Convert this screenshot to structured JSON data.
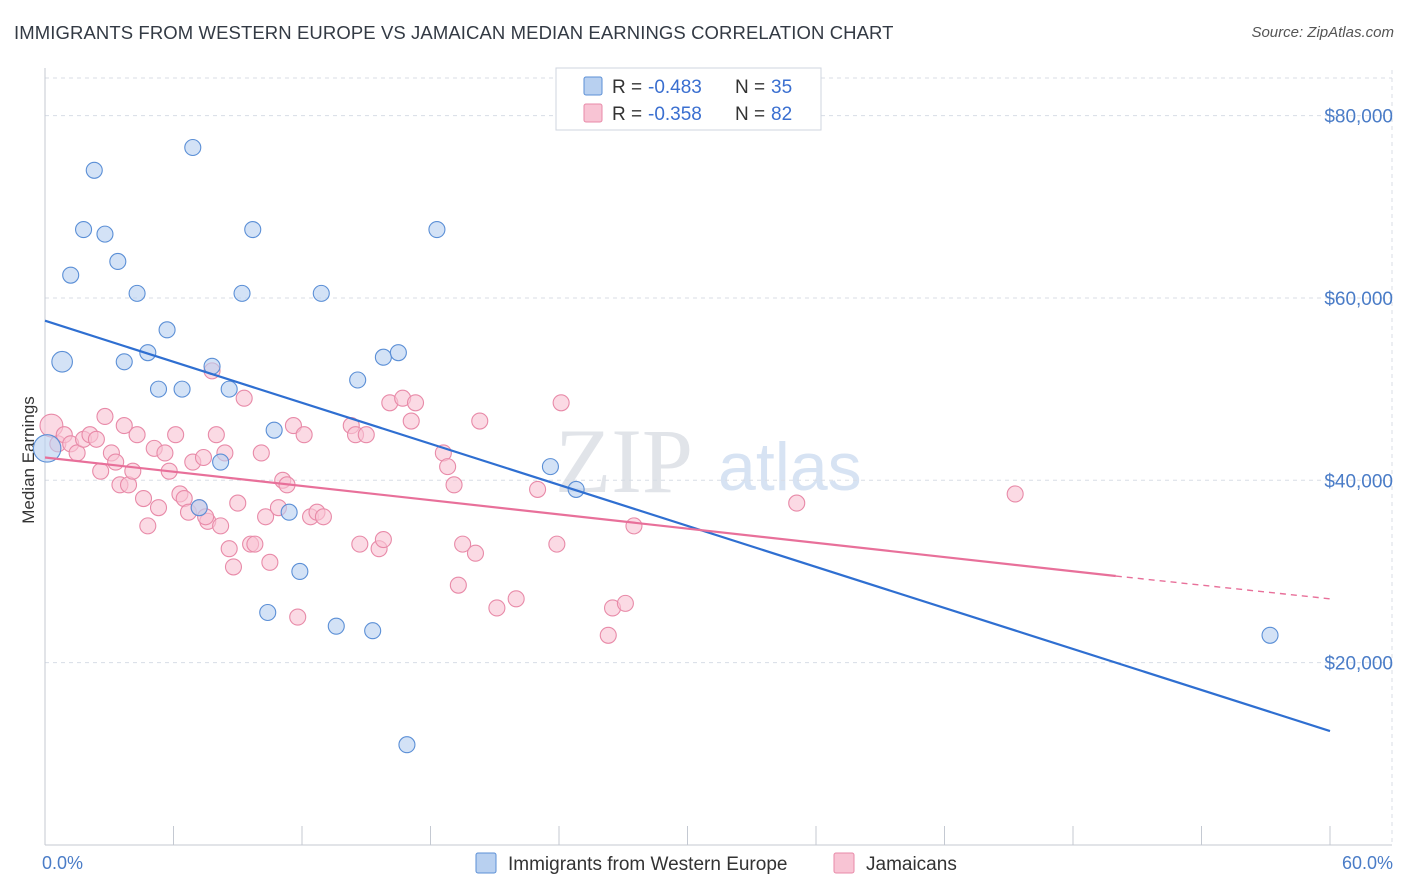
{
  "title": "IMMIGRANTS FROM WESTERN EUROPE VS JAMAICAN MEDIAN EARNINGS CORRELATION CHART",
  "source": "Source: ZipAtlas.com",
  "watermark": {
    "zip": "ZIP",
    "atlas": "atlas"
  },
  "colors": {
    "blue_fill": "#b8d0f0",
    "blue_stroke": "#5b8fd6",
    "blue_line": "#2f6fd1",
    "pink_fill": "#f8c4d4",
    "pink_stroke": "#e88aa8",
    "pink_line": "#e8709a",
    "accent_text": "#4a7cc7",
    "grid": "#d8dde6"
  },
  "legend_top": [
    {
      "r_label": "R = ",
      "r_value": "-0.483",
      "n_label": "N = ",
      "n_value": "35"
    },
    {
      "r_label": "R = ",
      "r_value": "-0.358",
      "n_label": "N = ",
      "n_value": "82"
    }
  ],
  "chart_data": {
    "type": "scatter",
    "title": "IMMIGRANTS FROM WESTERN EUROPE VS JAMAICAN MEDIAN EARNINGS CORRELATION CHART",
    "xlabel": "",
    "ylabel": "Median Earnings",
    "xlim": [
      0,
      60
    ],
    "ylim": [
      0,
      85000
    ],
    "x_ticks": [
      {
        "value": 0,
        "label": "0.0%"
      },
      {
        "value": 60,
        "label": "60.0%"
      }
    ],
    "y_ticks": [
      {
        "value": 20000,
        "label": "$20,000"
      },
      {
        "value": 40000,
        "label": "$40,000"
      },
      {
        "value": 60000,
        "label": "$60,000"
      },
      {
        "value": 80000,
        "label": "$80,000"
      }
    ],
    "grid": true,
    "series": [
      {
        "name": "Immigrants from Western Europe",
        "r": -0.483,
        "n": 35,
        "trend": {
          "x0": 0,
          "y0": 57500,
          "x1": 60,
          "y1": 12500
        },
        "points": [
          [
            0.1,
            43500
          ],
          [
            0.8,
            53000
          ],
          [
            1.2,
            62500
          ],
          [
            1.8,
            67500
          ],
          [
            2.3,
            74000
          ],
          [
            2.8,
            67000
          ],
          [
            3.4,
            64000
          ],
          [
            3.7,
            53000
          ],
          [
            4.3,
            60500
          ],
          [
            4.8,
            54000
          ],
          [
            5.3,
            50000
          ],
          [
            5.7,
            56500
          ],
          [
            6.4,
            50000
          ],
          [
            6.9,
            76500
          ],
          [
            7.2,
            37000
          ],
          [
            7.8,
            52500
          ],
          [
            8.2,
            42000
          ],
          [
            8.6,
            50000
          ],
          [
            9.2,
            60500
          ],
          [
            9.7,
            67500
          ],
          [
            10.4,
            25500
          ],
          [
            10.7,
            45500
          ],
          [
            11.4,
            36500
          ],
          [
            11.9,
            30000
          ],
          [
            12.9,
            60500
          ],
          [
            13.6,
            24000
          ],
          [
            14.6,
            51000
          ],
          [
            15.3,
            23500
          ],
          [
            15.8,
            53500
          ],
          [
            16.5,
            54000
          ],
          [
            16.9,
            11000
          ],
          [
            18.3,
            67500
          ],
          [
            23.6,
            41500
          ],
          [
            24.8,
            39000
          ],
          [
            57.2,
            23000
          ]
        ],
        "sizes": [
          24,
          18,
          14,
          14,
          14,
          14,
          14,
          14,
          14,
          14,
          14,
          14,
          14,
          14,
          14,
          14,
          14,
          14,
          14,
          14,
          14,
          14,
          14,
          14,
          14,
          14,
          14,
          14,
          14,
          14,
          14,
          14,
          14,
          14,
          14
        ]
      },
      {
        "name": "Jamaicans",
        "r": -0.358,
        "n": 82,
        "trend": {
          "x0": 0,
          "y0": 42500,
          "x1": 50,
          "y1": 29500,
          "dash_to_x": 60,
          "dash_to_y": 27000
        },
        "points": [
          [
            0.3,
            46000
          ],
          [
            0.6,
            44000
          ],
          [
            0.9,
            45000
          ],
          [
            1.2,
            44000
          ],
          [
            1.5,
            43000
          ],
          [
            1.8,
            44500
          ],
          [
            2.1,
            45000
          ],
          [
            2.4,
            44500
          ],
          [
            2.6,
            41000
          ],
          [
            2.8,
            47000
          ],
          [
            3.1,
            43000
          ],
          [
            3.3,
            42000
          ],
          [
            3.5,
            39500
          ],
          [
            3.7,
            46000
          ],
          [
            3.9,
            39500
          ],
          [
            4.1,
            41000
          ],
          [
            4.3,
            45000
          ],
          [
            4.6,
            38000
          ],
          [
            4.8,
            35000
          ],
          [
            5.1,
            43500
          ],
          [
            5.3,
            37000
          ],
          [
            5.6,
            43000
          ],
          [
            5.8,
            41000
          ],
          [
            6.1,
            45000
          ],
          [
            6.3,
            38500
          ],
          [
            6.5,
            38000
          ],
          [
            6.7,
            36500
          ],
          [
            6.9,
            42000
          ],
          [
            7.2,
            37000
          ],
          [
            7.4,
            42500
          ],
          [
            7.6,
            35500
          ],
          [
            7.8,
            52000
          ],
          [
            8.0,
            45000
          ],
          [
            8.2,
            35000
          ],
          [
            8.4,
            43000
          ],
          [
            8.6,
            32500
          ],
          [
            8.8,
            30500
          ],
          [
            9.0,
            37500
          ],
          [
            9.3,
            49000
          ],
          [
            9.6,
            33000
          ],
          [
            9.8,
            33000
          ],
          [
            10.1,
            43000
          ],
          [
            10.3,
            36000
          ],
          [
            10.5,
            31000
          ],
          [
            10.9,
            37000
          ],
          [
            11.1,
            40000
          ],
          [
            11.3,
            39500
          ],
          [
            11.6,
            46000
          ],
          [
            11.8,
            25000
          ],
          [
            12.1,
            45000
          ],
          [
            12.4,
            36000
          ],
          [
            12.7,
            36500
          ],
          [
            13.0,
            36000
          ],
          [
            14.3,
            46000
          ],
          [
            14.5,
            45000
          ],
          [
            14.7,
            33000
          ],
          [
            15.0,
            45000
          ],
          [
            15.6,
            32500
          ],
          [
            15.8,
            33500
          ],
          [
            16.1,
            48500
          ],
          [
            16.7,
            49000
          ],
          [
            17.1,
            46500
          ],
          [
            17.3,
            48500
          ],
          [
            18.6,
            43000
          ],
          [
            18.8,
            41500
          ],
          [
            19.1,
            39500
          ],
          [
            19.3,
            28500
          ],
          [
            19.5,
            33000
          ],
          [
            20.1,
            32000
          ],
          [
            20.3,
            46500
          ],
          [
            21.1,
            26000
          ],
          [
            23.0,
            39000
          ],
          [
            23.9,
            33000
          ],
          [
            24.1,
            48500
          ],
          [
            26.3,
            23000
          ],
          [
            26.5,
            26000
          ],
          [
            27.1,
            26500
          ],
          [
            27.5,
            35000
          ],
          [
            35.1,
            37500
          ],
          [
            45.3,
            38500
          ],
          [
            7.5,
            36000
          ],
          [
            22.0,
            27000
          ]
        ],
        "sizes": [
          20,
          14,
          14,
          14,
          14,
          14,
          14,
          14,
          14,
          14,
          14,
          14,
          14,
          14,
          14,
          14,
          14,
          14,
          14,
          14,
          14,
          14,
          14,
          14,
          14,
          14,
          14,
          14,
          14,
          14,
          14,
          14,
          14,
          14,
          14,
          14,
          14,
          14,
          14,
          14,
          14,
          14,
          14,
          14,
          14,
          14,
          14,
          14,
          14,
          14,
          14,
          14,
          14,
          14,
          14,
          14,
          14,
          14,
          14,
          14,
          14,
          14,
          14,
          14,
          14,
          14,
          14,
          14,
          14,
          14,
          14,
          14,
          14,
          14,
          14,
          14,
          14,
          14,
          14,
          14,
          14,
          14
        ]
      }
    ]
  }
}
